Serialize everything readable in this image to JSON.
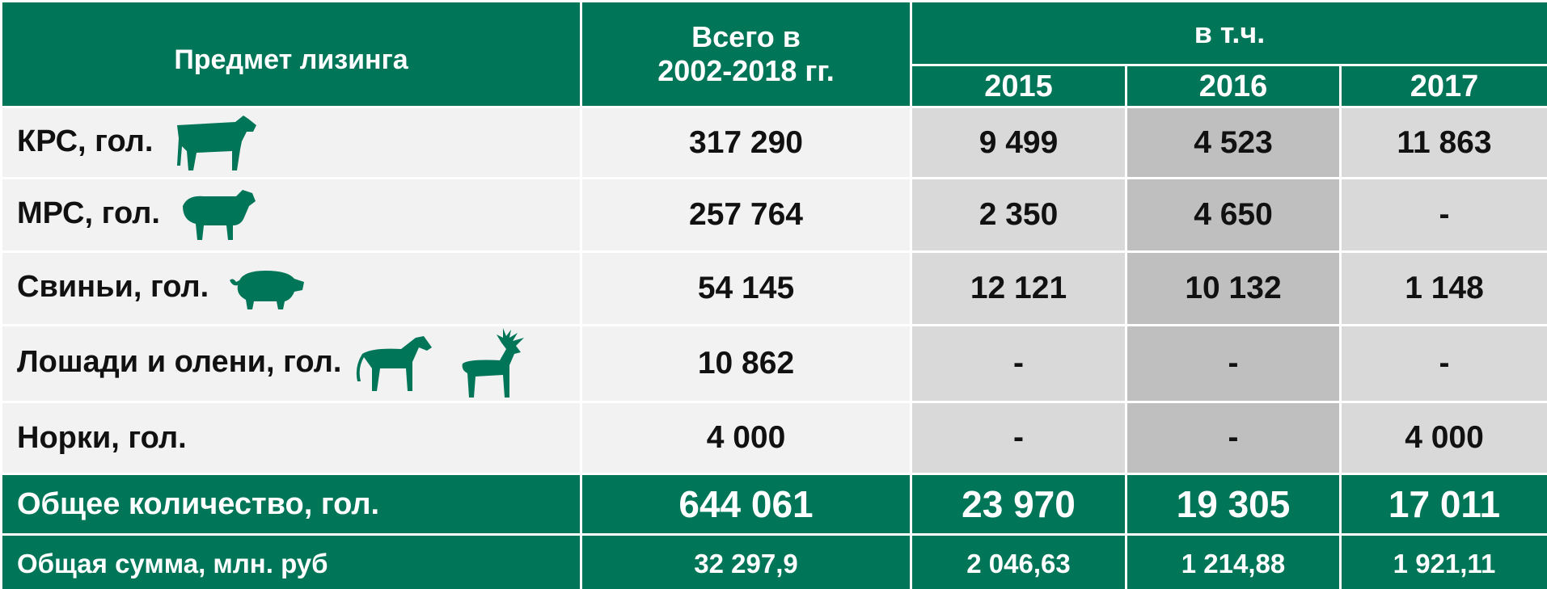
{
  "header": {
    "subject": "Предмет лизинга",
    "total": [
      "Всего в",
      "2002-2018 гг."
    ],
    "group": "в т.ч.",
    "years": [
      "2015",
      "2016",
      "2017"
    ]
  },
  "rows": [
    {
      "label": "КРС, гол.",
      "values": [
        "317 290",
        "9 499",
        "4 523",
        "11 863"
      ]
    },
    {
      "label": "МРС, гол.",
      "values": [
        "257 764",
        "2 350",
        "4 650",
        "-"
      ]
    },
    {
      "label": "Свиньи, гол.",
      "values": [
        "54 145",
        "12 121",
        "10 132",
        "1 148"
      ]
    },
    {
      "label": "Лошади и олени, гол.",
      "values": [
        "10 862",
        "-",
        "-",
        "-"
      ]
    },
    {
      "label": "Норки, гол.",
      "values": [
        "4 000",
        "-",
        "-",
        "4 000"
      ]
    }
  ],
  "totals": [
    {
      "label": "Общее количество, гол.",
      "values": [
        "644 061",
        "23 970",
        "19 305",
        "17 011"
      ]
    },
    {
      "label": "Общая сумма, млн. руб",
      "values": [
        "32 297,9",
        "2 046,63",
        "1 214,88",
        "1 921,11"
      ]
    }
  ]
}
